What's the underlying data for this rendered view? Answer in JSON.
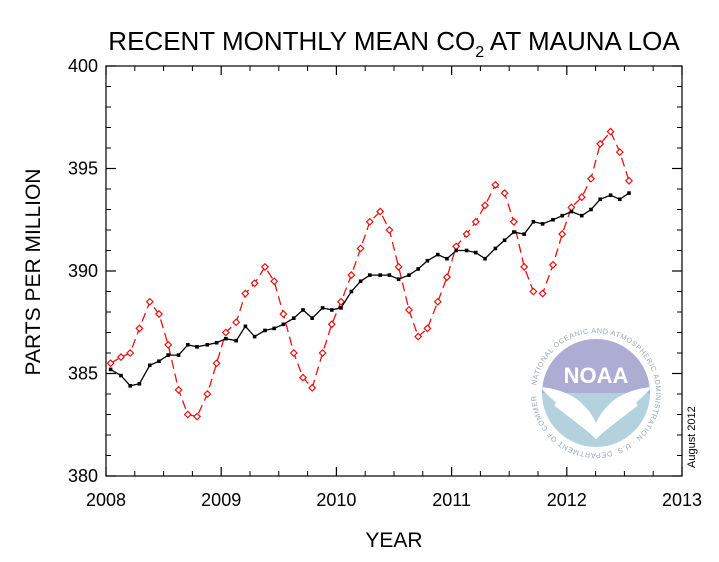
{
  "chart_data": {
    "type": "line",
    "title": {
      "text": "RECENT MONTHLY MEAN CO",
      "subscript": "2",
      "suffix": " AT MAUNA LOA"
    },
    "xlabel": "YEAR",
    "ylabel": "PARTS PER MILLION",
    "xlim": [
      2008,
      2013
    ],
    "ylim": [
      380,
      400
    ],
    "xticks": [
      "2008",
      "2009",
      "2010",
      "2011",
      "2012",
      "2013"
    ],
    "yticks": [
      "380",
      "385",
      "390",
      "395",
      "400"
    ],
    "grid": false,
    "series": [
      {
        "marker": "diamond",
        "line": "dashed",
        "color": "#e8130f",
        "x": [
          2008.04,
          2008.13,
          2008.21,
          2008.29,
          2008.38,
          2008.46,
          2008.54,
          2008.63,
          2008.71,
          2008.79,
          2008.88,
          2008.96,
          2009.04,
          2009.13,
          2009.21,
          2009.29,
          2009.38,
          2009.46,
          2009.54,
          2009.63,
          2009.71,
          2009.79,
          2009.88,
          2009.96,
          2010.04,
          2010.13,
          2010.21,
          2010.29,
          2010.38,
          2010.46,
          2010.54,
          2010.63,
          2010.71,
          2010.79,
          2010.88,
          2010.96,
          2011.04,
          2011.13,
          2011.21,
          2011.29,
          2011.38,
          2011.46,
          2011.54,
          2011.63,
          2011.71,
          2011.79,
          2011.88,
          2011.96,
          2012.04,
          2012.13,
          2012.21,
          2012.29,
          2012.38,
          2012.46,
          2012.54
        ],
        "values": [
          385.5,
          385.8,
          386.0,
          387.2,
          388.5,
          387.9,
          386.4,
          384.2,
          383.0,
          382.9,
          384.0,
          385.5,
          387.0,
          387.5,
          388.9,
          389.4,
          390.2,
          389.5,
          387.9,
          386.0,
          384.8,
          384.3,
          386.0,
          387.4,
          388.5,
          389.8,
          391.1,
          392.4,
          392.9,
          392.0,
          390.2,
          388.1,
          386.8,
          387.2,
          388.5,
          389.7,
          391.2,
          391.8,
          392.4,
          393.2,
          394.2,
          393.8,
          392.4,
          390.2,
          389.0,
          388.9,
          390.3,
          391.8,
          393.1,
          393.6,
          394.5,
          396.2,
          396.8,
          395.8,
          394.4
        ]
      },
      {
        "marker": "square",
        "line": "solid",
        "color": "#000000",
        "x": [
          2008.04,
          2008.13,
          2008.21,
          2008.29,
          2008.38,
          2008.46,
          2008.54,
          2008.63,
          2008.71,
          2008.79,
          2008.88,
          2008.96,
          2009.04,
          2009.13,
          2009.21,
          2009.29,
          2009.38,
          2009.46,
          2009.54,
          2009.63,
          2009.71,
          2009.79,
          2009.88,
          2009.96,
          2010.04,
          2010.13,
          2010.21,
          2010.29,
          2010.38,
          2010.46,
          2010.54,
          2010.63,
          2010.71,
          2010.79,
          2010.88,
          2010.96,
          2011.04,
          2011.13,
          2011.21,
          2011.29,
          2011.38,
          2011.46,
          2011.54,
          2011.63,
          2011.71,
          2011.79,
          2011.88,
          2011.96,
          2012.04,
          2012.13,
          2012.21,
          2012.29,
          2012.38,
          2012.46,
          2012.54
        ],
        "values": [
          385.2,
          384.9,
          384.4,
          384.5,
          385.4,
          385.6,
          385.9,
          385.9,
          386.4,
          386.3,
          386.4,
          386.5,
          386.7,
          386.6,
          387.3,
          386.8,
          387.1,
          387.2,
          387.4,
          387.7,
          388.1,
          387.7,
          388.2,
          388.1,
          388.2,
          389.0,
          389.5,
          389.8,
          389.8,
          389.8,
          389.6,
          389.8,
          390.1,
          390.5,
          390.8,
          390.6,
          391.0,
          391.0,
          390.9,
          390.6,
          391.1,
          391.5,
          391.9,
          391.8,
          392.4,
          392.3,
          392.5,
          392.7,
          392.9,
          392.7,
          393.0,
          393.5,
          393.7,
          393.5,
          393.8
        ]
      }
    ]
  },
  "logo": {
    "text": "NOAA",
    "ring_text": "NATIONAL OCEANIC AND ATMOSPHERIC ADMINISTRATION · U.S. DEPARTMENT OF COMMERCE ·"
  },
  "date_note": "August 2012"
}
